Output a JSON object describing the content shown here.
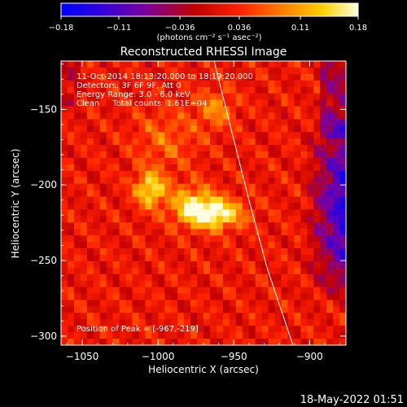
{
  "chart_data": {
    "type": "heatmap",
    "title": "Reconstructed RHESSI Image",
    "xlabel": "Heliocentric X (arcsec)",
    "ylabel": "Heliocentric Y (arcsec)",
    "xlim": [
      -1064,
      -876
    ],
    "ylim": [
      -306,
      -118
    ],
    "x_ticks": [
      {
        "value": -1050,
        "label": "−1050"
      },
      {
        "value": -1000,
        "label": "−1000"
      },
      {
        "value": -950,
        "label": "−950"
      },
      {
        "value": -900,
        "label": "−900"
      }
    ],
    "y_ticks": [
      {
        "value": -150,
        "label": "−150"
      },
      {
        "value": -200,
        "label": "−200"
      },
      {
        "value": -250,
        "label": "−250"
      },
      {
        "value": -300,
        "label": "−300"
      }
    ],
    "colorbar": {
      "range": [
        -0.18,
        0.18
      ],
      "tick_values": [
        -0.18,
        -0.11,
        -0.036,
        0.036,
        0.11,
        0.18
      ],
      "tick_labels": [
        "−0.18",
        "−0.11",
        "−0.036",
        "0.036",
        "0.11",
        "0.18"
      ],
      "unit_label": "(photons cm⁻² s⁻¹ asec⁻²)"
    },
    "annotations": [
      "11-Oct-2014 18:13:20.000 to 18:19:20.000",
      "Detectors: 3F 6F 9F, Att 0",
      "Energy Range: 3.0 - 6.0 keV",
      "Clean     Total counts: 1.61E+04"
    ],
    "peak_label": "Position of Peak = [-967,-219]",
    "peak": {
      "x": -967,
      "y": -219
    },
    "sources": [
      {
        "x": -965,
        "y": -219,
        "amplitude": 0.18,
        "sigma_x": 14,
        "sigma_y": 7
      },
      {
        "x": -1005,
        "y": -203,
        "amplitude": 0.14,
        "sigma_x": 7,
        "sigma_y": 8
      },
      {
        "x": -978,
        "y": -210,
        "amplitude": 0.08,
        "sigma_x": 10,
        "sigma_y": 8
      },
      {
        "x": -962,
        "y": -150,
        "amplitude": 0.07,
        "sigma_x": 9,
        "sigma_y": 9
      },
      {
        "x": -995,
        "y": -170,
        "amplitude": 0.05,
        "sigma_x": 15,
        "sigma_y": 14
      }
    ],
    "limb": [
      {
        "x": -963,
        "y": -118
      },
      {
        "x": -950,
        "y": -170
      },
      {
        "x": -940,
        "y": -210
      },
      {
        "x": -928,
        "y": -255
      },
      {
        "x": -911,
        "y": -306
      }
    ]
  },
  "footer": {
    "timestamp": "18-May-2022 01:51"
  }
}
